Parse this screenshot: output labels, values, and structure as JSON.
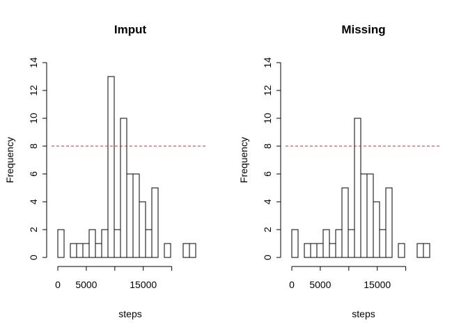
{
  "chart_data": [
    {
      "type": "bar",
      "title": "Imput",
      "xlabel": "steps",
      "ylabel": "Frequency",
      "ylim": [
        0,
        14
      ],
      "yticks": [
        0,
        2,
        4,
        6,
        8,
        10,
        12,
        14
      ],
      "xticks": [
        0,
        5000,
        15000
      ],
      "bin_width": 1100,
      "bin_start": 0,
      "values": [
        2,
        0,
        1,
        1,
        1,
        2,
        1,
        2,
        13,
        2,
        10,
        6,
        6,
        4,
        2,
        5,
        0,
        1,
        0,
        0,
        1,
        1
      ],
      "reference_line": {
        "y": 8,
        "style": "dashed",
        "color": "#d62728"
      },
      "grid": false,
      "legend": "none"
    },
    {
      "type": "bar",
      "title": "Missing",
      "xlabel": "steps",
      "ylabel": "Frequency",
      "ylim": [
        0,
        14
      ],
      "yticks": [
        0,
        2,
        4,
        6,
        8,
        10,
        12,
        14
      ],
      "xticks": [
        0,
        5000,
        15000
      ],
      "bin_width": 1100,
      "bin_start": 0,
      "values": [
        2,
        0,
        1,
        1,
        1,
        2,
        1,
        2,
        5,
        2,
        10,
        6,
        6,
        4,
        2,
        5,
        0,
        1,
        0,
        0,
        1,
        1
      ],
      "reference_line": {
        "y": 8,
        "style": "dashed",
        "color": "#d62728"
      },
      "grid": false,
      "legend": "none"
    }
  ]
}
